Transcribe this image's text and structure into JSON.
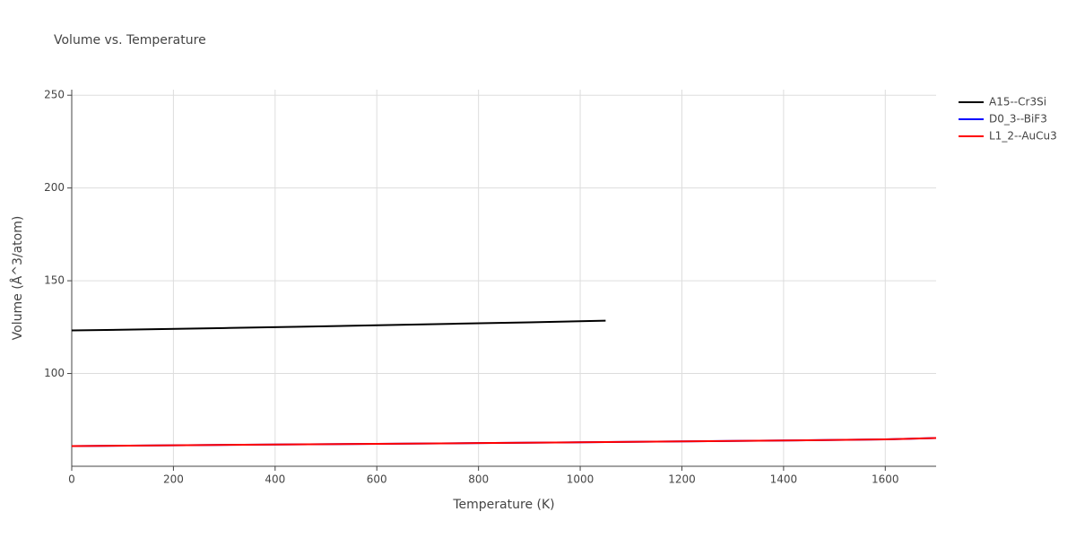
{
  "chart_data": {
    "type": "line",
    "title": "Volume vs. Temperature",
    "xlabel": "Temperature (K)",
    "ylabel": "Volume (Å^3/atom)",
    "xlim": [
      0,
      1700
    ],
    "xticks": [
      0,
      200,
      400,
      600,
      800,
      1000,
      1200,
      1400,
      1600
    ],
    "ylim": [
      50,
      253
    ],
    "yticks": [
      100,
      150,
      200,
      250
    ],
    "grid": true,
    "legend": "outside-right",
    "series": [
      {
        "name": "A15--Cr3Si",
        "color": "#000000",
        "x": [
          0,
          150,
          300,
          450,
          600,
          750,
          900,
          1050
        ],
        "values": [
          123.2,
          123.8,
          124.5,
          125.2,
          126.0,
          126.8,
          127.6,
          128.5
        ]
      },
      {
        "name": "D0_3--BiF3",
        "color": "#0000ff",
        "x": [
          0,
          200,
          400,
          600,
          800,
          1000,
          1200,
          1400,
          1600,
          1700
        ],
        "values": [
          60.9,
          61.3,
          61.7,
          62.1,
          62.5,
          62.9,
          63.4,
          63.9,
          64.5,
          65.2
        ]
      },
      {
        "name": "L1_2--AuCu3",
        "color": "#ff0000",
        "x": [
          0,
          200,
          400,
          600,
          800,
          1000,
          1200,
          1400,
          1600,
          1700
        ],
        "values": [
          60.9,
          61.3,
          61.7,
          62.1,
          62.5,
          62.9,
          63.4,
          63.9,
          64.5,
          65.2
        ]
      }
    ]
  }
}
